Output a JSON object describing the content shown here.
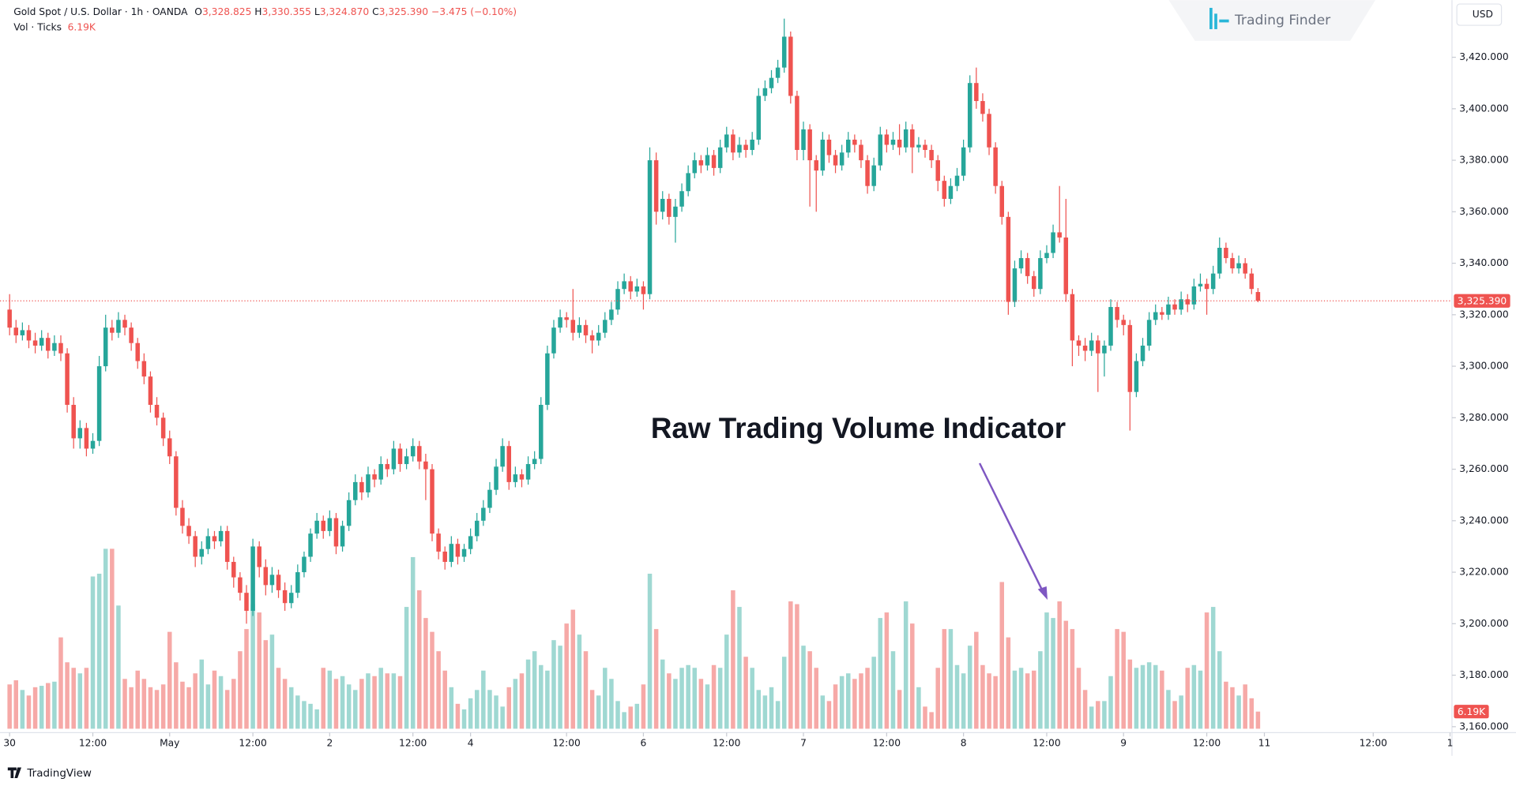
{
  "header": {
    "symbol": "Gold Spot / U.S. Dollar · 1h · OANDA",
    "open_label": "O",
    "open": "3,328.825",
    "high_label": "H",
    "high": "3,330.355",
    "low_label": "L",
    "low": "3,324.870",
    "close_label": "C",
    "close": "3,325.390",
    "change": "−3.475 (−0.10%)",
    "volume_label": "Vol · Ticks",
    "volume": "6.19K"
  },
  "brand": "Trading Finder",
  "currency": "USD",
  "footer": "TradingView",
  "annotation": "Raw Trading Volume Indicator",
  "chart_data": {
    "type": "candlestick",
    "up_color": "#26a69a",
    "down_color": "#ef5350",
    "volume_up_color": "#9fd8d2",
    "volume_down_color": "#f6a9a7",
    "grid": false,
    "xlim": [
      -1.5,
      225
    ],
    "ylim": [
      3157.7,
      3442.2
    ],
    "volume_ylim": [
      0,
      70000
    ],
    "xticks": [
      {
        "value": 0,
        "label": "30"
      },
      {
        "value": 13,
        "label": "12:00"
      },
      {
        "value": 25,
        "label": "May"
      },
      {
        "value": 38,
        "label": "12:00"
      },
      {
        "value": 50,
        "label": "2"
      },
      {
        "value": 63,
        "label": "12:00"
      },
      {
        "value": 72,
        "label": "4"
      },
      {
        "value": 87,
        "label": "12:00"
      },
      {
        "value": 99,
        "label": "6"
      },
      {
        "value": 112,
        "label": "12:00"
      },
      {
        "value": 124,
        "label": "7"
      },
      {
        "value": 137,
        "label": "12:00"
      },
      {
        "value": 149,
        "label": "8"
      },
      {
        "value": 162,
        "label": "12:00"
      },
      {
        "value": 174,
        "label": "9"
      },
      {
        "value": 187,
        "label": "12:00"
      },
      {
        "value": 196,
        "label": "11"
      },
      {
        "value": 213,
        "label": "12:00"
      },
      {
        "value": 225,
        "label": "1"
      }
    ],
    "yticks": [
      {
        "value": 3160,
        "label": "3,160.000"
      },
      {
        "value": 3180,
        "label": "3,180.000"
      },
      {
        "value": 3200,
        "label": "3,200.000"
      },
      {
        "value": 3220,
        "label": "3,220.000"
      },
      {
        "value": 3240,
        "label": "3,240.000"
      },
      {
        "value": 3260,
        "label": "3,260.000"
      },
      {
        "value": 3280,
        "label": "3,280.000"
      },
      {
        "value": 3300,
        "label": "3,300.000"
      },
      {
        "value": 3320,
        "label": "3,320.000"
      },
      {
        "value": 3340,
        "label": "3,340.000"
      },
      {
        "value": 3360,
        "label": "3,360.000"
      },
      {
        "value": 3380,
        "label": "3,380.000"
      },
      {
        "value": 3400,
        "label": "3,400.000"
      },
      {
        "value": 3420,
        "label": "3,420.000"
      }
    ],
    "candles": [
      [
        3322,
        3328,
        3312,
        3315
      ],
      [
        3315,
        3318,
        3309,
        3312
      ],
      [
        3312,
        3317,
        3310,
        3314
      ],
      [
        3314,
        3316,
        3307,
        3310
      ],
      [
        3310,
        3313,
        3305,
        3308
      ],
      [
        3308,
        3314,
        3306,
        3311
      ],
      [
        3311,
        3313,
        3303,
        3306
      ],
      [
        3306,
        3312,
        3304,
        3309
      ],
      [
        3309,
        3312,
        3302,
        3305
      ],
      [
        3305,
        3307,
        3282,
        3285
      ],
      [
        3285,
        3288,
        3268,
        3272
      ],
      [
        3272,
        3279,
        3268,
        3276
      ],
      [
        3276,
        3278,
        3265,
        3268
      ],
      [
        3268,
        3274,
        3266,
        3271
      ],
      [
        3271,
        3304,
        3269,
        3300
      ],
      [
        3300,
        3320,
        3298,
        3315
      ],
      [
        3315,
        3318,
        3310,
        3313
      ],
      [
        3313,
        3321,
        3311,
        3318
      ],
      [
        3318,
        3320,
        3312,
        3315
      ],
      [
        3315,
        3317,
        3306,
        3309
      ],
      [
        3309,
        3311,
        3299,
        3302
      ],
      [
        3302,
        3305,
        3293,
        3296
      ],
      [
        3296,
        3298,
        3282,
        3285
      ],
      [
        3285,
        3288,
        3277,
        3280
      ],
      [
        3280,
        3282,
        3269,
        3272
      ],
      [
        3272,
        3275,
        3262,
        3265
      ],
      [
        3265,
        3267,
        3242,
        3245
      ],
      [
        3245,
        3248,
        3235,
        3238
      ],
      [
        3238,
        3241,
        3231,
        3234
      ],
      [
        3234,
        3236,
        3222,
        3226
      ],
      [
        3226,
        3232,
        3223,
        3229
      ],
      [
        3229,
        3237,
        3227,
        3234
      ],
      [
        3234,
        3236,
        3229,
        3232
      ],
      [
        3232,
        3238,
        3230,
        3236
      ],
      [
        3236,
        3238,
        3221,
        3224
      ],
      [
        3224,
        3226,
        3214,
        3218
      ],
      [
        3218,
        3220,
        3209,
        3212
      ],
      [
        3212,
        3215,
        3200,
        3205
      ],
      [
        3205,
        3233,
        3203,
        3230
      ],
      [
        3230,
        3232,
        3218,
        3222
      ],
      [
        3222,
        3225,
        3211,
        3215
      ],
      [
        3215,
        3222,
        3212,
        3219
      ],
      [
        3219,
        3221,
        3210,
        3213
      ],
      [
        3213,
        3216,
        3205,
        3208
      ],
      [
        3208,
        3215,
        3206,
        3212
      ],
      [
        3212,
        3223,
        3210,
        3220
      ],
      [
        3220,
        3228,
        3218,
        3226
      ],
      [
        3226,
        3237,
        3224,
        3235
      ],
      [
        3235,
        3243,
        3233,
        3240
      ],
      [
        3240,
        3242,
        3233,
        3236
      ],
      [
        3236,
        3244,
        3234,
        3241
      ],
      [
        3241,
        3243,
        3227,
        3230
      ],
      [
        3230,
        3240,
        3228,
        3238
      ],
      [
        3238,
        3251,
        3236,
        3248
      ],
      [
        3248,
        3258,
        3246,
        3255
      ],
      [
        3255,
        3257,
        3248,
        3251
      ],
      [
        3251,
        3261,
        3249,
        3258
      ],
      [
        3258,
        3260,
        3253,
        3256
      ],
      [
        3256,
        3265,
        3254,
        3262
      ],
      [
        3262,
        3264,
        3257,
        3260
      ],
      [
        3260,
        3271,
        3258,
        3268
      ],
      [
        3268,
        3270,
        3259,
        3262
      ],
      [
        3262,
        3268,
        3260,
        3265
      ],
      [
        3265,
        3272,
        3263,
        3269
      ],
      [
        3269,
        3271,
        3260,
        3263
      ],
      [
        3263,
        3266,
        3248,
        3260
      ],
      [
        3260,
        3262,
        3232,
        3235
      ],
      [
        3235,
        3237,
        3225,
        3228
      ],
      [
        3228,
        3230,
        3221,
        3224
      ],
      [
        3224,
        3234,
        3222,
        3231
      ],
      [
        3231,
        3233,
        3223,
        3226
      ],
      [
        3226,
        3231,
        3224,
        3229
      ],
      [
        3229,
        3237,
        3227,
        3234
      ],
      [
        3234,
        3243,
        3232,
        3240
      ],
      [
        3240,
        3248,
        3238,
        3245
      ],
      [
        3245,
        3255,
        3243,
        3252
      ],
      [
        3252,
        3264,
        3250,
        3261
      ],
      [
        3261,
        3272,
        3259,
        3269
      ],
      [
        3269,
        3271,
        3252,
        3255
      ],
      [
        3255,
        3261,
        3253,
        3258
      ],
      [
        3258,
        3260,
        3253,
        3256
      ],
      [
        3256,
        3265,
        3254,
        3262
      ],
      [
        3262,
        3267,
        3260,
        3264
      ],
      [
        3264,
        3288,
        3262,
        3285
      ],
      [
        3285,
        3308,
        3283,
        3305
      ],
      [
        3305,
        3318,
        3303,
        3315
      ],
      [
        3315,
        3322,
        3313,
        3319
      ],
      [
        3319,
        3321,
        3315,
        3318
      ],
      [
        3318,
        3330,
        3310,
        3313
      ],
      [
        3313,
        3319,
        3311,
        3316
      ],
      [
        3316,
        3318,
        3309,
        3312
      ],
      [
        3312,
        3314,
        3305,
        3310
      ],
      [
        3310,
        3316,
        3308,
        3313
      ],
      [
        3313,
        3321,
        3311,
        3318
      ],
      [
        3318,
        3325,
        3316,
        3322
      ],
      [
        3322,
        3333,
        3320,
        3330
      ],
      [
        3330,
        3336,
        3328,
        3333
      ],
      [
        3333,
        3335,
        3326,
        3329
      ],
      [
        3329,
        3334,
        3327,
        3331
      ],
      [
        3331,
        3333,
        3322,
        3328
      ],
      [
        3328,
        3385,
        3326,
        3380
      ],
      [
        3380,
        3383,
        3355,
        3360
      ],
      [
        3360,
        3368,
        3357,
        3365
      ],
      [
        3365,
        3367,
        3355,
        3358
      ],
      [
        3358,
        3365,
        3348,
        3362
      ],
      [
        3362,
        3371,
        3360,
        3368
      ],
      [
        3368,
        3378,
        3366,
        3375
      ],
      [
        3375,
        3383,
        3373,
        3380
      ],
      [
        3380,
        3382,
        3375,
        3378
      ],
      [
        3378,
        3385,
        3376,
        3382
      ],
      [
        3382,
        3384,
        3374,
        3377
      ],
      [
        3377,
        3388,
        3375,
        3385
      ],
      [
        3385,
        3393,
        3383,
        3390
      ],
      [
        3390,
        3392,
        3380,
        3383
      ],
      [
        3383,
        3389,
        3381,
        3386
      ],
      [
        3386,
        3388,
        3381,
        3384
      ],
      [
        3384,
        3391,
        3382,
        3388
      ],
      [
        3388,
        3408,
        3386,
        3405
      ],
      [
        3405,
        3411,
        3403,
        3408
      ],
      [
        3408,
        3415,
        3406,
        3412
      ],
      [
        3412,
        3419,
        3410,
        3416
      ],
      [
        3416,
        3435,
        3414,
        3428
      ],
      [
        3428,
        3430,
        3402,
        3405
      ],
      [
        3405,
        3407,
        3380,
        3384
      ],
      [
        3384,
        3395,
        3380,
        3392
      ],
      [
        3392,
        3394,
        3362,
        3380
      ],
      [
        3380,
        3382,
        3360,
        3376
      ],
      [
        3376,
        3391,
        3374,
        3388
      ],
      [
        3388,
        3390,
        3379,
        3382
      ],
      [
        3382,
        3384,
        3375,
        3378
      ],
      [
        3378,
        3386,
        3376,
        3383
      ],
      [
        3383,
        3391,
        3381,
        3388
      ],
      [
        3388,
        3390,
        3383,
        3386
      ],
      [
        3386,
        3388,
        3377,
        3380
      ],
      [
        3380,
        3382,
        3367,
        3370
      ],
      [
        3370,
        3381,
        3368,
        3378
      ],
      [
        3378,
        3393,
        3376,
        3390
      ],
      [
        3390,
        3392,
        3383,
        3386
      ],
      [
        3386,
        3391,
        3384,
        3388
      ],
      [
        3388,
        3394,
        3382,
        3385
      ],
      [
        3385,
        3395,
        3383,
        3392
      ],
      [
        3392,
        3394,
        3375,
        3385
      ],
      [
        3385,
        3389,
        3383,
        3386
      ],
      [
        3386,
        3388,
        3381,
        3384
      ],
      [
        3384,
        3386,
        3377,
        3380
      ],
      [
        3380,
        3382,
        3368,
        3372
      ],
      [
        3372,
        3374,
        3362,
        3365
      ],
      [
        3365,
        3373,
        3363,
        3370
      ],
      [
        3370,
        3377,
        3368,
        3374
      ],
      [
        3374,
        3388,
        3372,
        3385
      ],
      [
        3385,
        3413,
        3383,
        3410
      ],
      [
        3410,
        3416,
        3400,
        3403
      ],
      [
        3403,
        3406,
        3395,
        3398
      ],
      [
        3398,
        3400,
        3382,
        3385
      ],
      [
        3385,
        3387,
        3367,
        3370
      ],
      [
        3370,
        3372,
        3355,
        3358
      ],
      [
        3358,
        3360,
        3320,
        3325
      ],
      [
        3325,
        3341,
        3323,
        3338
      ],
      [
        3338,
        3345,
        3336,
        3342
      ],
      [
        3342,
        3344,
        3332,
        3335
      ],
      [
        3335,
        3337,
        3327,
        3330
      ],
      [
        3330,
        3345,
        3328,
        3342
      ],
      [
        3342,
        3347,
        3340,
        3344
      ],
      [
        3344,
        3355,
        3342,
        3352
      ],
      [
        3352,
        3370,
        3348,
        3350
      ],
      [
        3350,
        3365,
        3325,
        3328
      ],
      [
        3328,
        3330,
        3300,
        3310
      ],
      [
        3310,
        3312,
        3304,
        3308
      ],
      [
        3308,
        3311,
        3302,
        3306
      ],
      [
        3306,
        3313,
        3304,
        3310
      ],
      [
        3310,
        3312,
        3290,
        3305
      ],
      [
        3305,
        3310,
        3296,
        3308
      ],
      [
        3308,
        3326,
        3306,
        3323
      ],
      [
        3323,
        3325,
        3315,
        3318
      ],
      [
        3318,
        3320,
        3312,
        3316
      ],
      [
        3316,
        3318,
        3275,
        3290
      ],
      [
        3290,
        3305,
        3288,
        3302
      ],
      [
        3302,
        3311,
        3300,
        3308
      ],
      [
        3308,
        3321,
        3306,
        3318
      ],
      [
        3318,
        3324,
        3316,
        3321
      ],
      [
        3321,
        3323,
        3318,
        3320
      ],
      [
        3320,
        3327,
        3318,
        3324
      ],
      [
        3324,
        3326,
        3320,
        3322
      ],
      [
        3322,
        3329,
        3320,
        3326
      ],
      [
        3326,
        3328,
        3321,
        3324
      ],
      [
        3324,
        3334,
        3322,
        3331
      ],
      [
        3331,
        3336,
        3329,
        3332
      ],
      [
        3332,
        3334,
        3320,
        3330
      ],
      [
        3330,
        3339,
        3328,
        3336
      ],
      [
        3336,
        3350,
        3334,
        3346
      ],
      [
        3346,
        3348,
        3340,
        3342
      ],
      [
        3342,
        3344,
        3336,
        3338
      ],
      [
        3338,
        3343,
        3336,
        3340
      ],
      [
        3340,
        3342,
        3334,
        3336
      ],
      [
        3336,
        3338,
        3328,
        3330
      ],
      [
        3328.825,
        3330.355,
        3324.87,
        3325.39
      ]
    ],
    "volumes": [
      16000,
      17500,
      14000,
      12000,
      15000,
      15500,
      16500,
      17000,
      33000,
      24000,
      22000,
      20000,
      22000,
      55000,
      56000,
      65000,
      65000,
      44500,
      18000,
      15000,
      21000,
      18000,
      15000,
      14000,
      16000,
      35000,
      24000,
      17000,
      15000,
      20000,
      25000,
      16000,
      21000,
      19000,
      14000,
      18000,
      28000,
      36000,
      45000,
      42000,
      32000,
      34000,
      22000,
      18000,
      15000,
      12000,
      10000,
      9000,
      7000,
      22000,
      21000,
      18000,
      19000,
      16000,
      14000,
      18000,
      20000,
      19000,
      22000,
      20000,
      20000,
      19000,
      44000,
      62000,
      50000,
      40000,
      35000,
      28000,
      21000,
      15000,
      9000,
      7000,
      11000,
      14000,
      21000,
      14000,
      12000,
      8000,
      15000,
      18000,
      20000,
      25000,
      28000,
      23000,
      21000,
      32000,
      30000,
      38000,
      43000,
      34000,
      28000,
      14000,
      12000,
      22000,
      18000,
      10000,
      6000,
      8000,
      9000,
      16000,
      56000,
      36000,
      25000,
      20000,
      18000,
      22000,
      23000,
      22000,
      18000,
      16000,
      23000,
      22000,
      34000,
      50000,
      44000,
      26000,
      22000,
      14000,
      12000,
      15000,
      10000,
      26000,
      46000,
      45000,
      30000,
      28000,
      22000,
      12000,
      10000,
      16000,
      19000,
      20000,
      18000,
      20000,
      22000,
      26000,
      40000,
      42000,
      28000,
      14000,
      46000,
      38000,
      15000,
      8000,
      6000,
      22000,
      36000,
      36000,
      23000,
      20000,
      30000,
      35000,
      23000,
      20000,
      19000,
      53000,
      33000,
      21000,
      22000,
      20000,
      21000,
      28000,
      42000,
      40000,
      46000,
      39000,
      36000,
      22000,
      14000,
      8000,
      10000,
      10000,
      19000,
      36000,
      35000,
      25000,
      22000,
      23000,
      24000,
      23000,
      21000,
      14000,
      10000,
      12000,
      22000,
      23000,
      21000,
      42000,
      44000,
      28000,
      17000,
      15000,
      12000,
      16000,
      11000,
      6190
    ]
  }
}
